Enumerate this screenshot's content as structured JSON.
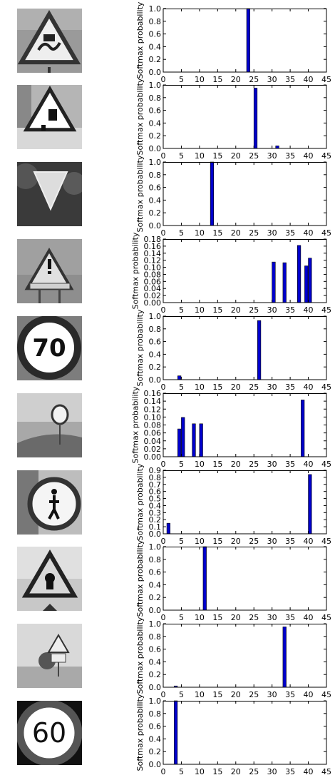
{
  "colors": {
    "bar": "#0000cc",
    "bar_edge": "#000000",
    "axis": "#000000"
  },
  "images": [
    {
      "icon": "slippery-road-sign-icon",
      "bg": "#9a9a9a"
    },
    {
      "icon": "road-work-sign-icon",
      "bg": "#b5b5b5"
    },
    {
      "icon": "yield-sign-icon",
      "bg": "#4a4a4a"
    },
    {
      "icon": "general-caution-sign-icon",
      "bg": "#8e8e8e"
    },
    {
      "icon": "speed-limit-70-sign-icon",
      "bg": "#7d7d7d",
      "text": "70"
    },
    {
      "icon": "distant-round-sign-icon",
      "bg": "#a8a8a8"
    },
    {
      "icon": "keep-right-pedestrian-sign-icon",
      "bg": "#bdbdbd"
    },
    {
      "icon": "right-of-way-sign-icon",
      "bg": "#c8c8c8"
    },
    {
      "icon": "warning-sign-with-plate-icon",
      "bg": "#d9d9d9"
    },
    {
      "icon": "speed-limit-60-sign-icon",
      "bg": "#111111",
      "text": "60"
    }
  ],
  "chart_data": [
    {
      "type": "bar",
      "ylabel": "Softmax probability",
      "xlim": [
        0,
        45
      ],
      "ylim": [
        0,
        1.0
      ],
      "xticks": [
        "0",
        "5",
        "10",
        "15",
        "20",
        "25",
        "30",
        "35",
        "40",
        "45"
      ],
      "yticks": [
        "0.0",
        "0.2",
        "0.4",
        "0.6",
        "0.8",
        "1.0"
      ],
      "bars": [
        {
          "x": 23,
          "y": 1.0
        }
      ]
    },
    {
      "type": "bar",
      "ylabel": "Softmax probability",
      "xlim": [
        0,
        45
      ],
      "ylim": [
        0,
        1.0
      ],
      "xticks": [
        "0",
        "5",
        "10",
        "15",
        "20",
        "25",
        "30",
        "35",
        "40",
        "45"
      ],
      "yticks": [
        "0.0",
        "0.2",
        "0.4",
        "0.6",
        "0.8",
        "1.0"
      ],
      "bars": [
        {
          "x": 25,
          "y": 0.95
        },
        {
          "x": 31,
          "y": 0.04
        }
      ]
    },
    {
      "type": "bar",
      "ylabel": "Softmax probability",
      "xlim": [
        0,
        45
      ],
      "ylim": [
        0,
        1.0
      ],
      "xticks": [
        "0",
        "5",
        "10",
        "15",
        "20",
        "25",
        "30",
        "35",
        "40",
        "45"
      ],
      "yticks": [
        "0.0",
        "0.2",
        "0.4",
        "0.6",
        "0.8",
        "1.0"
      ],
      "bars": [
        {
          "x": 13,
          "y": 1.0
        }
      ]
    },
    {
      "type": "bar",
      "ylabel": "Softmax probability",
      "xlim": [
        0,
        45
      ],
      "ylim": [
        0,
        0.18
      ],
      "xticks": [
        "0",
        "5",
        "10",
        "15",
        "20",
        "25",
        "30",
        "35",
        "40",
        "45"
      ],
      "yticks": [
        "0.00",
        "0.02",
        "0.04",
        "0.06",
        "0.08",
        "0.10",
        "0.12",
        "0.14",
        "0.16",
        "0.18"
      ],
      "bars": [
        {
          "x": 30,
          "y": 0.115
        },
        {
          "x": 33,
          "y": 0.113
        },
        {
          "x": 37,
          "y": 0.162
        },
        {
          "x": 39,
          "y": 0.104
        },
        {
          "x": 40,
          "y": 0.126
        }
      ]
    },
    {
      "type": "bar",
      "ylabel": "Softmax probability",
      "xlim": [
        0,
        45
      ],
      "ylim": [
        0,
        1.0
      ],
      "xticks": [
        "0",
        "5",
        "10",
        "15",
        "20",
        "25",
        "30",
        "35",
        "40",
        "45"
      ],
      "yticks": [
        "0.0",
        "0.2",
        "0.4",
        "0.6",
        "0.8",
        "1.0"
      ],
      "bars": [
        {
          "x": 4,
          "y": 0.06
        },
        {
          "x": 26,
          "y": 0.93
        }
      ]
    },
    {
      "type": "bar",
      "ylabel": "Softmax probability",
      "xlim": [
        0,
        45
      ],
      "ylim": [
        0,
        0.16
      ],
      "xticks": [
        "0",
        "5",
        "10",
        "15",
        "20",
        "25",
        "30",
        "35",
        "40",
        "45"
      ],
      "yticks": [
        "0.00",
        "0.02",
        "0.04",
        "0.06",
        "0.08",
        "0.10",
        "0.12",
        "0.14",
        "0.16"
      ],
      "bars": [
        {
          "x": 4,
          "y": 0.07
        },
        {
          "x": 5,
          "y": 0.099
        },
        {
          "x": 8,
          "y": 0.083
        },
        {
          "x": 10,
          "y": 0.083
        },
        {
          "x": 38,
          "y": 0.143
        }
      ]
    },
    {
      "type": "bar",
      "ylabel": "Softmax probability",
      "xlim": [
        0,
        45
      ],
      "ylim": [
        0,
        0.9
      ],
      "xticks": [
        "0",
        "5",
        "10",
        "15",
        "20",
        "25",
        "30",
        "35",
        "40",
        "45"
      ],
      "yticks": [
        "0.0",
        "0.1",
        "0.2",
        "0.3",
        "0.4",
        "0.5",
        "0.6",
        "0.7",
        "0.8",
        "0.9"
      ],
      "bars": [
        {
          "x": 1,
          "y": 0.15
        },
        {
          "x": 40,
          "y": 0.84
        }
      ]
    },
    {
      "type": "bar",
      "ylabel": "Softmax probability",
      "xlim": [
        0,
        45
      ],
      "ylim": [
        0,
        1.0
      ],
      "xticks": [
        "0",
        "5",
        "10",
        "15",
        "20",
        "25",
        "30",
        "35",
        "40",
        "45"
      ],
      "yticks": [
        "0.0",
        "0.2",
        "0.4",
        "0.6",
        "0.8",
        "1.0"
      ],
      "bars": [
        {
          "x": 11,
          "y": 1.0
        }
      ]
    },
    {
      "type": "bar",
      "ylabel": "Softmax probability",
      "xlim": [
        0,
        45
      ],
      "ylim": [
        0,
        1.0
      ],
      "xticks": [
        "0",
        "5",
        "10",
        "15",
        "20",
        "25",
        "30",
        "35",
        "40",
        "45"
      ],
      "yticks": [
        "0.0",
        "0.2",
        "0.4",
        "0.6",
        "0.8",
        "1.0"
      ],
      "bars": [
        {
          "x": 3,
          "y": 0.02
        },
        {
          "x": 33,
          "y": 0.95
        }
      ]
    },
    {
      "type": "bar",
      "ylabel": "Softmax probability",
      "xlim": [
        0,
        45
      ],
      "ylim": [
        0,
        1.0
      ],
      "xticks": [
        "0",
        "5",
        "10",
        "15",
        "20",
        "25",
        "30",
        "35",
        "40",
        "45"
      ],
      "yticks": [
        "0.0",
        "0.2",
        "0.4",
        "0.6",
        "0.8",
        "1.0"
      ],
      "bars": [
        {
          "x": 3,
          "y": 1.0
        }
      ]
    }
  ]
}
